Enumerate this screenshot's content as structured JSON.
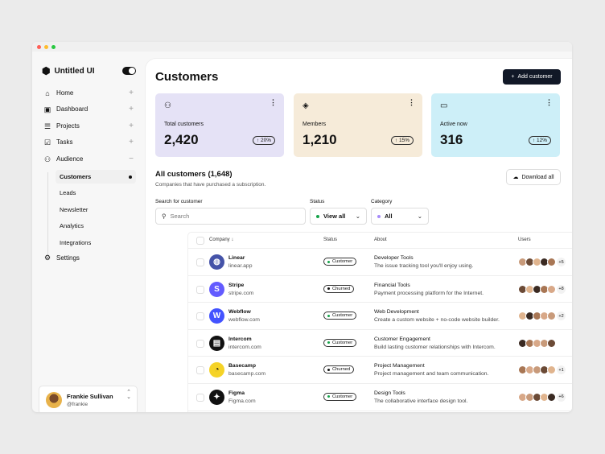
{
  "brand": "Untitled UI",
  "sidebar": {
    "items": [
      {
        "label": "Home",
        "icon": "home-icon"
      },
      {
        "label": "Dashboard",
        "icon": "dashboard-icon"
      },
      {
        "label": "Projects",
        "icon": "projects-icon"
      },
      {
        "label": "Tasks",
        "icon": "tasks-icon"
      },
      {
        "label": "Audience",
        "icon": "users-icon"
      }
    ],
    "sub_items": [
      "Customers",
      "Leads",
      "Newsletter",
      "Analytics",
      "Integrations"
    ],
    "settings": "Settings",
    "user": {
      "name": "Frankie Sullivan",
      "handle": "@frankie"
    }
  },
  "header": {
    "title": "Customers",
    "add_button": "Add customer"
  },
  "stats": [
    {
      "label": "Total customers",
      "value": "2,420",
      "change": "20%",
      "color": "#e5e2f6",
      "icon": "user-icon"
    },
    {
      "label": "Members",
      "value": "1,210",
      "change": "15%",
      "color": "#f6ebd9",
      "icon": "layers-icon"
    },
    {
      "label": "Active now",
      "value": "316",
      "change": "12%",
      "color": "#cdeff8",
      "icon": "monitor-icon"
    }
  ],
  "section": {
    "title": "All customers (1,648)",
    "subtitle": "Companies that have purchased a subscription.",
    "download": "Download all"
  },
  "filters": {
    "search_label": "Search for customer",
    "search_placeholder": "Search",
    "status_label": "Status",
    "status_value": "View all",
    "category_label": "Category",
    "category_value": "All"
  },
  "table": {
    "headers": [
      "Company",
      "Status",
      "About",
      "Users"
    ],
    "rows": [
      {
        "name": "Linear",
        "domain": "linear.app",
        "status": "Customer",
        "category": "Developer Tools",
        "about": "The issue tracking tool you'll enjoy using.",
        "extra": "+5",
        "logo_color": "#4553a8"
      },
      {
        "name": "Stripe",
        "domain": "stripe.com",
        "status": "Churned",
        "category": "Financial Tools",
        "about": "Payment processing platform for the Internet.",
        "extra": "+8",
        "logo_color": "#635bff"
      },
      {
        "name": "Webflow",
        "domain": "webflow.com",
        "status": "Customer",
        "category": "Web Development",
        "about": "Create a custom website + no-code website builder.",
        "extra": "+2",
        "logo_color": "#4353ff"
      },
      {
        "name": "Intercom",
        "domain": "intercom.com",
        "status": "Customer",
        "category": "Customer Engagement",
        "about": "Build lasting customer relationships with Intercom.",
        "extra": "",
        "logo_color": "#111111"
      },
      {
        "name": "Basecamp",
        "domain": "basecamp.com",
        "status": "Churned",
        "category": "Project Management",
        "about": "Project management and team communication.",
        "extra": "+1",
        "logo_color": "#f5d327"
      },
      {
        "name": "Figma",
        "domain": "Figma.com",
        "status": "Customer",
        "category": "Design Tools",
        "about": "The collaborative interface design tool.",
        "extra": "+6",
        "logo_color": "#111111"
      }
    ]
  }
}
